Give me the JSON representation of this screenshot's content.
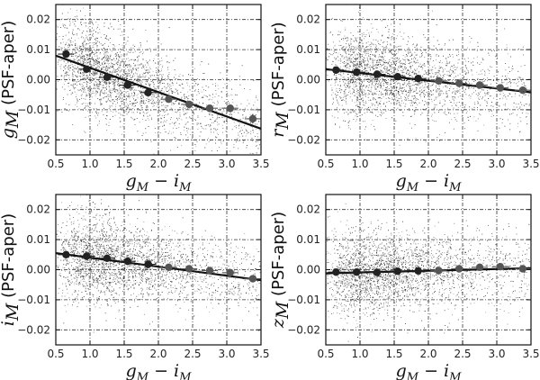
{
  "chart_data": [
    {
      "type": "scatter",
      "panel": "g",
      "ylabel_main": "g",
      "ylabel_sub": "M",
      "ylabel_tail": "(PSF-aper)",
      "xlabel": {
        "a": "g",
        "a_sub": "M",
        "op": "−",
        "b": "i",
        "b_sub": "M"
      },
      "xlim": [
        0.5,
        3.5
      ],
      "ylim": [
        -0.025,
        0.025
      ],
      "xticks": [
        "0.5",
        "1.0",
        "1.5",
        "2.0",
        "2.5",
        "3.0",
        "3.5"
      ],
      "yticks": [
        "−0.02",
        "−0.01",
        "0.00",
        "0.01",
        "0.02"
      ],
      "grid": true,
      "fit_line": {
        "x": [
          0.5,
          3.5
        ],
        "y": [
          0.008,
          -0.0163
        ]
      },
      "binned_points": {
        "x": [
          0.65,
          0.95,
          1.25,
          1.55,
          1.85,
          2.15,
          2.45,
          2.75,
          3.05,
          3.38
        ],
        "y": [
          0.0085,
          0.0035,
          0.0008,
          -0.0018,
          -0.0043,
          -0.0065,
          -0.0082,
          -0.0095,
          -0.0095,
          -0.013
        ],
        "yerr": [
          0.0009,
          0.0006,
          0.0005,
          0.0005,
          0.0005,
          0.0006,
          0.0006,
          0.0008,
          0.001,
          0.0016
        ]
      }
    },
    {
      "type": "scatter",
      "panel": "r",
      "ylabel_main": "r",
      "ylabel_sub": "M",
      "ylabel_tail": "(PSF-aper)",
      "xlabel": {
        "a": "g",
        "a_sub": "M",
        "op": "−",
        "b": "i",
        "b_sub": "M"
      },
      "xlim": [
        0.5,
        3.5
      ],
      "ylim": [
        -0.025,
        0.025
      ],
      "xticks": [
        "0.5",
        "1.0",
        "1.5",
        "2.0",
        "2.5",
        "3.0",
        "3.5"
      ],
      "yticks": [
        "−0.02",
        "−0.01",
        "0.00",
        "0.01",
        "0.02"
      ],
      "grid": true,
      "fit_line": {
        "x": [
          0.5,
          3.5
        ],
        "y": [
          0.0035,
          -0.0042
        ]
      },
      "binned_points": {
        "x": [
          0.65,
          0.95,
          1.25,
          1.55,
          1.85,
          2.15,
          2.45,
          2.75,
          3.05,
          3.38
        ],
        "y": [
          0.0032,
          0.0025,
          0.0018,
          0.001,
          0.0004,
          -0.0004,
          -0.0012,
          -0.0018,
          -0.0027,
          -0.0035
        ],
        "yerr": [
          0.0003,
          0.0003,
          0.0003,
          0.0003,
          0.0003,
          0.0003,
          0.0003,
          0.0003,
          0.0004,
          0.0005
        ]
      }
    },
    {
      "type": "scatter",
      "panel": "i",
      "ylabel_main": "i",
      "ylabel_sub": "M",
      "ylabel_tail": "(PSF-aper)",
      "xlabel": {
        "a": "g",
        "a_sub": "M",
        "op": "−",
        "b": "i",
        "b_sub": "M"
      },
      "xlim": [
        0.5,
        3.5
      ],
      "ylim": [
        -0.025,
        0.025
      ],
      "xticks": [
        "0.5",
        "1.0",
        "1.5",
        "2.0",
        "2.5",
        "3.0",
        "3.5"
      ],
      "yticks": [
        "−0.02",
        "−0.01",
        "0.00",
        "0.01",
        "0.02"
      ],
      "grid": true,
      "fit_line": {
        "x": [
          0.5,
          3.5
        ],
        "y": [
          0.0055,
          -0.0035
        ]
      },
      "binned_points": {
        "x": [
          0.65,
          0.95,
          1.25,
          1.55,
          1.85,
          2.15,
          2.45,
          2.75,
          3.05,
          3.38
        ],
        "y": [
          0.005,
          0.0045,
          0.0038,
          0.0028,
          0.0018,
          0.0008,
          0.0003,
          -0.0003,
          -0.001,
          -0.003
        ],
        "yerr": [
          0.0003,
          0.0003,
          0.0003,
          0.0003,
          0.0003,
          0.0003,
          0.0004,
          0.0004,
          0.0005,
          0.0006
        ]
      }
    },
    {
      "type": "scatter",
      "panel": "z",
      "ylabel_main": "z",
      "ylabel_sub": "M",
      "ylabel_tail": "(PSF-aper)",
      "xlabel": {
        "a": "g",
        "a_sub": "M",
        "op": "−",
        "b": "i",
        "b_sub": "M"
      },
      "xlim": [
        0.5,
        3.5
      ],
      "ylim": [
        -0.025,
        0.025
      ],
      "xticks": [
        "0.5",
        "1.0",
        "1.5",
        "2.0",
        "2.5",
        "3.0",
        "3.5"
      ],
      "yticks": [
        "−0.02",
        "−0.01",
        "0.00",
        "0.01",
        "0.02"
      ],
      "grid": true,
      "fit_line": {
        "x": [
          0.5,
          3.5
        ],
        "y": [
          -0.0012,
          0.0005
        ]
      },
      "binned_points": {
        "x": [
          0.65,
          0.95,
          1.25,
          1.55,
          1.85,
          2.15,
          2.45,
          2.75,
          3.05,
          3.38
        ],
        "y": [
          -0.0008,
          -0.0008,
          -0.0009,
          -0.0005,
          -0.0004,
          -0.0003,
          0.0003,
          0.0008,
          0.001,
          0.0003
        ],
        "yerr": [
          0.0003,
          0.0003,
          0.0003,
          0.0003,
          0.0003,
          0.0003,
          0.0003,
          0.0004,
          0.0004,
          0.0005
        ]
      }
    }
  ],
  "style": {
    "fit_color": "#111111",
    "point_dark": "#222222",
    "point_mid": "#555555",
    "scatter_color": "#000000",
    "grid_color": "#333333"
  }
}
